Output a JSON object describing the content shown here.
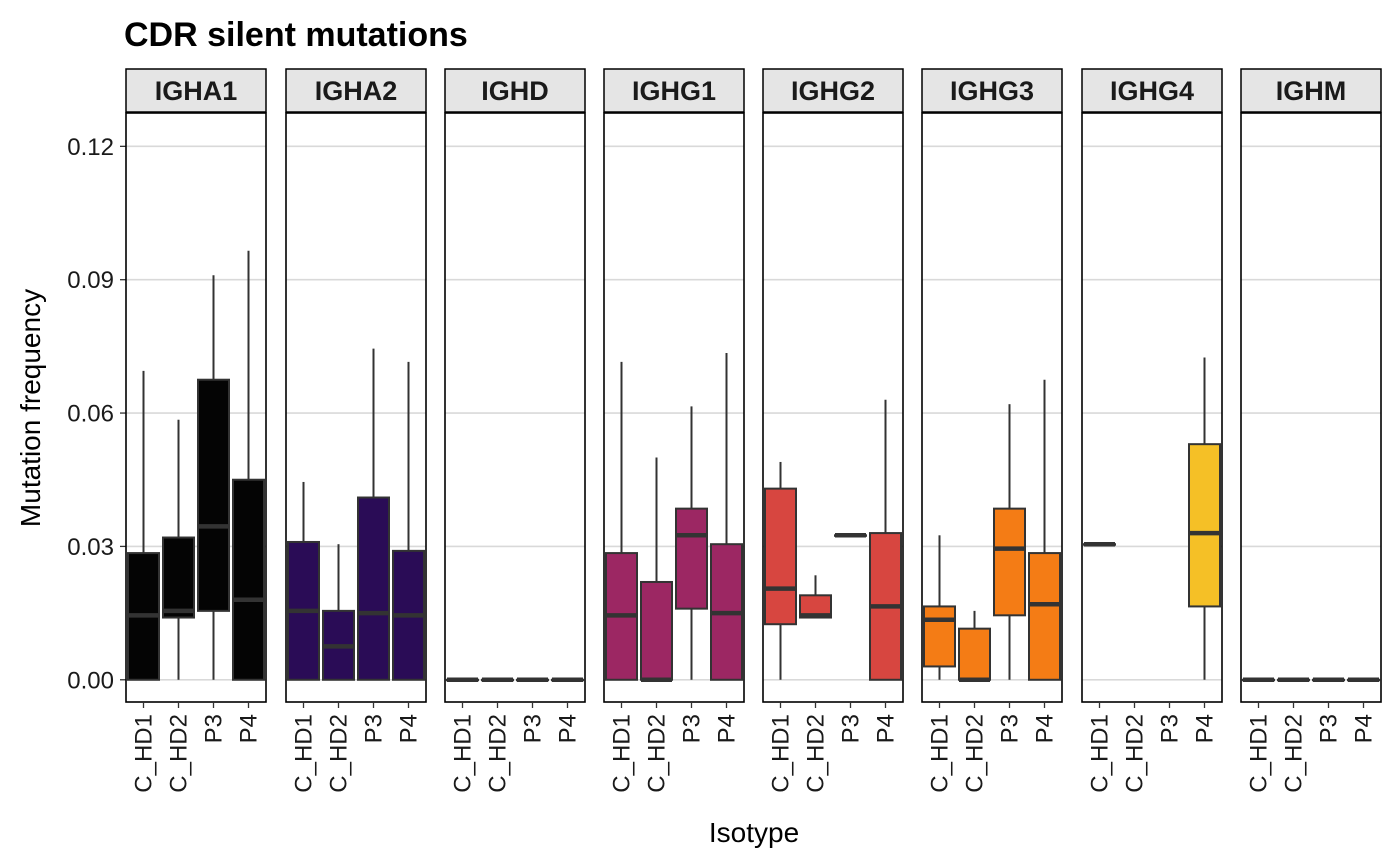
{
  "chart_data": {
    "type": "boxplot",
    "title": "CDR silent mutations",
    "xlabel": "Isotype",
    "ylabel": "Mutation frequency",
    "ylim": [
      -0.005,
      0.1275
    ],
    "yticks": [
      0.0,
      0.03,
      0.06,
      0.09,
      0.12
    ],
    "ytick_labels": [
      "0.00",
      "0.03",
      "0.06",
      "0.09",
      "0.12"
    ],
    "grid": "horizontal major lines",
    "legend": "none",
    "categories": [
      "C_HD1",
      "C_HD2",
      "P3",
      "P4"
    ],
    "facets": [
      {
        "name": "IGHA1",
        "color": "#040404",
        "boxes": [
          {
            "x": "C_HD1",
            "min": 0.0,
            "q1": 0.0,
            "median": 0.0145,
            "q3": 0.0285,
            "max": 0.0695
          },
          {
            "x": "C_HD2",
            "min": 0.0,
            "q1": 0.014,
            "median": 0.0155,
            "q3": 0.032,
            "max": 0.0585
          },
          {
            "x": "P3",
            "min": 0.0,
            "q1": 0.0155,
            "median": 0.0345,
            "q3": 0.0675,
            "max": 0.091
          },
          {
            "x": "P4",
            "min": 0.0,
            "q1": 0.0,
            "median": 0.018,
            "q3": 0.045,
            "max": 0.0965
          }
        ]
      },
      {
        "name": "IGHA2",
        "color": "#2a0c56",
        "boxes": [
          {
            "x": "C_HD1",
            "min": 0.0,
            "q1": 0.0,
            "median": 0.0155,
            "q3": 0.031,
            "max": 0.0445
          },
          {
            "x": "C_HD2",
            "min": 0.0,
            "q1": 0.0,
            "median": 0.0075,
            "q3": 0.0155,
            "max": 0.0305
          },
          {
            "x": "P3",
            "min": 0.0,
            "q1": 0.0,
            "median": 0.015,
            "q3": 0.041,
            "max": 0.0745
          },
          {
            "x": "P4",
            "min": 0.0,
            "q1": 0.0,
            "median": 0.0145,
            "q3": 0.029,
            "max": 0.0715
          }
        ]
      },
      {
        "name": "IGHD",
        "color": "#333333",
        "boxes": [
          {
            "x": "C_HD1",
            "min": 0.0,
            "q1": 0.0,
            "median": 0.0,
            "q3": 0.0,
            "max": 0.0
          },
          {
            "x": "C_HD2",
            "min": 0.0,
            "q1": 0.0,
            "median": 0.0,
            "q3": 0.0,
            "max": 0.0
          },
          {
            "x": "P3",
            "min": 0.0,
            "q1": 0.0,
            "median": 0.0,
            "q3": 0.0,
            "max": 0.0
          },
          {
            "x": "P4",
            "min": 0.0,
            "q1": 0.0,
            "median": 0.0,
            "q3": 0.0,
            "max": 0.0
          }
        ]
      },
      {
        "name": "IGHG1",
        "color": "#9c2763",
        "boxes": [
          {
            "x": "C_HD1",
            "min": 0.0,
            "q1": 0.0,
            "median": 0.0145,
            "q3": 0.0285,
            "max": 0.0715
          },
          {
            "x": "C_HD2",
            "min": 0.0,
            "q1": 0.0,
            "median": 0.0,
            "q3": 0.022,
            "max": 0.05
          },
          {
            "x": "P3",
            "min": 0.0,
            "q1": 0.016,
            "median": 0.0325,
            "q3": 0.0385,
            "max": 0.0615
          },
          {
            "x": "P4",
            "min": 0.0,
            "q1": 0.0,
            "median": 0.015,
            "q3": 0.0305,
            "max": 0.0735
          }
        ]
      },
      {
        "name": "IGHG2",
        "color": "#d74640",
        "boxes": [
          {
            "x": "C_HD1",
            "min": 0.0,
            "q1": 0.0125,
            "median": 0.0205,
            "q3": 0.043,
            "max": 0.049
          },
          {
            "x": "C_HD2",
            "min": 0.014,
            "q1": 0.014,
            "median": 0.0145,
            "q3": 0.019,
            "max": 0.0235
          },
          {
            "x": "P3",
            "min": 0.0325,
            "q1": 0.0325,
            "median": 0.0325,
            "q3": 0.0325,
            "max": 0.0325
          },
          {
            "x": "P4",
            "min": 0.0,
            "q1": 0.0,
            "median": 0.0165,
            "q3": 0.033,
            "max": 0.063
          }
        ]
      },
      {
        "name": "IGHG3",
        "color": "#f47c15",
        "boxes": [
          {
            "x": "C_HD1",
            "min": 0.0,
            "q1": 0.003,
            "median": 0.0135,
            "q3": 0.0165,
            "max": 0.0325
          },
          {
            "x": "C_HD2",
            "min": 0.0,
            "q1": 0.0,
            "median": 0.0,
            "q3": 0.0115,
            "max": 0.0155
          },
          {
            "x": "P3",
            "min": 0.0,
            "q1": 0.0145,
            "median": 0.0295,
            "q3": 0.0385,
            "max": 0.062
          },
          {
            "x": "P4",
            "min": 0.0,
            "q1": 0.0,
            "median": 0.017,
            "q3": 0.0285,
            "max": 0.0675
          }
        ]
      },
      {
        "name": "IGHG4",
        "color": "#f5c026",
        "boxes": [
          {
            "x": "C_HD1",
            "min": 0.0305,
            "q1": 0.0305,
            "median": 0.0305,
            "q3": 0.0305,
            "max": 0.0305
          },
          {
            "x": "P4",
            "min": 0.0,
            "q1": 0.0165,
            "median": 0.033,
            "q3": 0.053,
            "max": 0.0725
          }
        ]
      },
      {
        "name": "IGHM",
        "color": "#333333",
        "boxes": [
          {
            "x": "C_HD1",
            "min": 0.0,
            "q1": 0.0,
            "median": 0.0,
            "q3": 0.0,
            "max": 0.0
          },
          {
            "x": "C_HD2",
            "min": 0.0,
            "q1": 0.0,
            "median": 0.0,
            "q3": 0.0,
            "max": 0.0
          },
          {
            "x": "P3",
            "min": 0.0,
            "q1": 0.0,
            "median": 0.0,
            "q3": 0.0,
            "max": 0.0
          },
          {
            "x": "P4",
            "min": 0.0,
            "q1": 0.0,
            "median": 0.0,
            "q3": 0.0,
            "max": 0.0
          }
        ]
      }
    ]
  }
}
